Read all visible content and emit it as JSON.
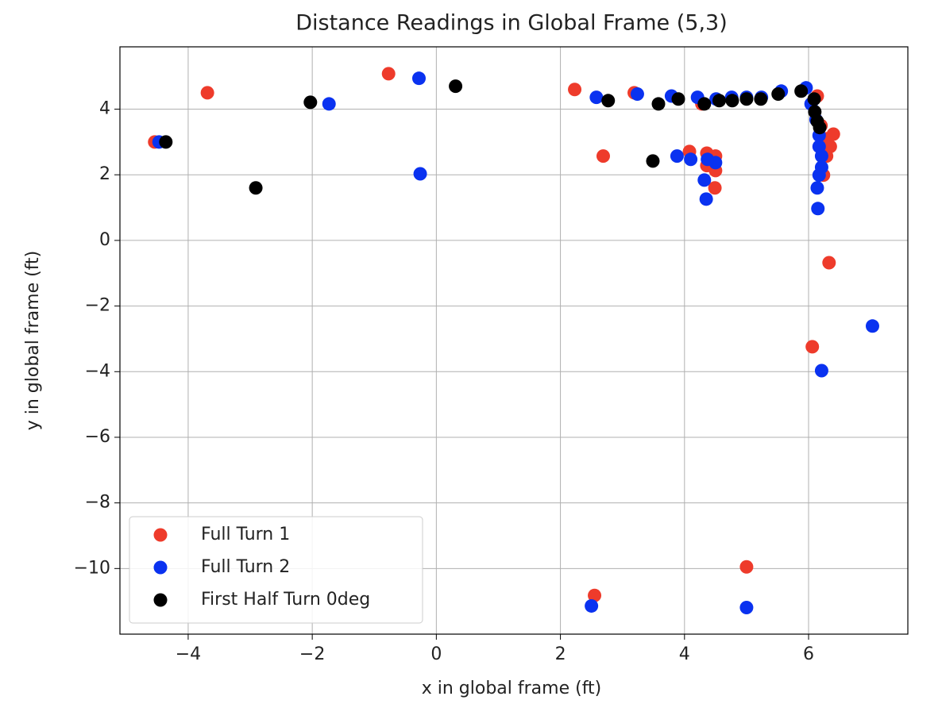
{
  "chart_data": {
    "type": "scatter",
    "title": "Distance Readings in Global Frame (5,3)",
    "x_label": "x in global frame (ft)",
    "y_label": "y in global frame (ft)",
    "xlim": [
      -5.1,
      7.6
    ],
    "ylim": [
      -12.0,
      5.9
    ],
    "xticks": [
      {
        "value": -4,
        "label": "−4"
      },
      {
        "value": -2,
        "label": "−2"
      },
      0,
      2,
      4,
      6
    ],
    "yticks": [
      {
        "value": -10,
        "label": "−10"
      },
      {
        "value": -8,
        "label": "−8"
      },
      {
        "value": -6,
        "label": "−6"
      },
      {
        "value": -4,
        "label": "−4"
      },
      {
        "value": -2,
        "label": "−2"
      },
      0,
      2,
      4
    ],
    "grid": true,
    "legend": "lower left",
    "series": [
      {
        "name": "Full Turn 1",
        "color": "#ee3b2b",
        "x": [
          -4.54,
          -3.69,
          -0.77,
          2.23,
          2.69,
          3.19,
          4.08,
          4.36,
          4.5,
          4.5,
          4.36,
          4.49,
          4.28,
          6.14,
          6.2,
          6.3,
          6.4,
          6.35,
          6.29,
          6.24,
          6.33,
          6.06,
          5.0,
          2.55
        ],
        "y": [
          3.0,
          4.5,
          5.08,
          4.6,
          2.57,
          4.5,
          2.71,
          2.66,
          2.57,
          2.13,
          2.28,
          1.6,
          4.16,
          4.4,
          3.5,
          3.1,
          3.24,
          2.86,
          2.57,
          1.99,
          -0.68,
          -3.24,
          -9.95,
          -10.82
        ]
      },
      {
        "name": "Full Turn 2",
        "color": "#0a32f0",
        "x": [
          -4.47,
          -1.73,
          -0.28,
          -0.26,
          2.58,
          3.24,
          3.79,
          3.88,
          4.1,
          4.21,
          4.32,
          4.35,
          4.37,
          4.5,
          4.51,
          4.76,
          5.0,
          5.24,
          5.56,
          5.96,
          6.04,
          6.12,
          6.17,
          6.17,
          6.21,
          6.21,
          6.17,
          6.14,
          6.15,
          7.03,
          6.21,
          2.5,
          5.0
        ],
        "y": [
          3.0,
          4.16,
          4.94,
          2.03,
          4.36,
          4.46,
          4.4,
          2.57,
          2.47,
          4.36,
          1.84,
          1.26,
          2.47,
          2.37,
          4.31,
          4.36,
          4.36,
          4.36,
          4.55,
          4.65,
          4.16,
          3.68,
          3.2,
          2.86,
          2.57,
          2.23,
          1.99,
          1.6,
          0.97,
          -2.61,
          -3.97,
          -11.14,
          -11.19
        ]
      },
      {
        "name": "First Half Turn 0deg",
        "color": "#000000",
        "x": [
          -4.36,
          -2.91,
          -2.03,
          0.31,
          2.77,
          3.49,
          3.58,
          3.9,
          4.32,
          4.56,
          4.77,
          5.0,
          5.23,
          5.51,
          5.88,
          6.09,
          6.1,
          6.14,
          6.18
        ],
        "y": [
          3.0,
          1.6,
          4.21,
          4.7,
          4.26,
          2.42,
          4.16,
          4.31,
          4.16,
          4.26,
          4.26,
          4.31,
          4.31,
          4.46,
          4.55,
          4.31,
          3.92,
          3.63,
          3.44
        ]
      }
    ]
  }
}
